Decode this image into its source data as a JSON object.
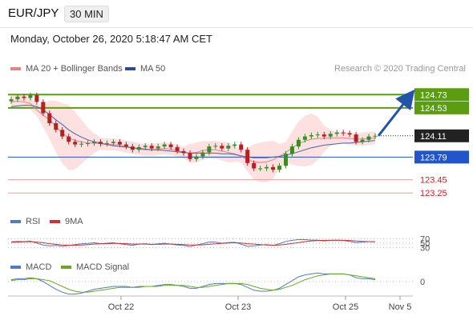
{
  "header": {
    "symbol": "EUR/JPY",
    "timeframe": "30 MIN",
    "datetime": "Monday, October 26, 2020 5:18:47 AM CET"
  },
  "legend": {
    "ma20_label": "MA 20 + Bollinger Bands",
    "ma50_label": "MA 50",
    "credit": "Research © 2020 Trading Central"
  },
  "rsi_legend": {
    "rsi_label": "RSI",
    "ma_label": "9MA"
  },
  "macd_legend": {
    "macd_label": "MACD",
    "signal_label": "MACD Signal"
  },
  "colors": {
    "resistance": "#5a9e0f",
    "support": "#2255cc",
    "weak_support": "#e8a0a0",
    "current": "#222222",
    "ma20": "#f08080",
    "band": "#fde0e0",
    "ma50": "#4466aa",
    "rsi": "#5577cc",
    "rsi_ma": "#cc3333",
    "macd": "#5577cc",
    "macd_signal": "#66aa22",
    "candle_up": "#3a8a2a",
    "candle_down": "#b52020",
    "arrow": "#2255aa"
  },
  "chart_data": [
    {
      "type": "candlestick",
      "title": "EUR/JPY",
      "ylim": [
        123.0,
        124.95
      ],
      "x_ticks": [
        "Oct 22",
        "Oct 23",
        "Oct 25",
        "Nov 5"
      ],
      "price_levels": [
        {
          "label": "124.73",
          "value": 124.73,
          "kind": "resistance"
        },
        {
          "label": "124.53",
          "value": 124.53,
          "kind": "resistance"
        },
        {
          "label": "124.11",
          "value": 124.11,
          "kind": "current"
        },
        {
          "label": "123.79",
          "value": 123.79,
          "kind": "support"
        },
        {
          "label": "123.45",
          "value": 123.45,
          "kind": "weak_support"
        },
        {
          "label": "123.25",
          "value": 123.25,
          "kind": "weak_support"
        }
      ],
      "close_series": [
        124.66,
        124.7,
        124.68,
        124.72,
        124.62,
        124.45,
        124.3,
        124.2,
        124.1,
        124.02,
        123.98,
        123.99,
        124.0,
        124.02,
        123.99,
        124.0,
        124.02,
        123.98,
        123.95,
        123.9,
        123.94,
        123.96,
        123.92,
        123.95,
        123.98,
        123.94,
        123.88,
        123.85,
        123.76,
        123.8,
        123.86,
        123.95,
        123.96,
        123.92,
        123.96,
        123.98,
        123.9,
        123.7,
        123.62,
        123.62,
        123.64,
        123.6,
        123.66,
        123.84,
        123.95,
        124.05,
        124.1,
        124.12,
        124.13,
        124.1,
        124.14,
        124.16,
        124.15,
        124.13,
        124.02,
        124.05,
        124.1,
        124.11
      ],
      "ma20_series": [
        124.62,
        124.63,
        124.62,
        124.6,
        124.5,
        124.42,
        124.35,
        124.25,
        124.15,
        124.08,
        124.04,
        124.02,
        124.0,
        124.0,
        123.99,
        123.98,
        123.98,
        123.97,
        123.95,
        123.93,
        123.91,
        123.9,
        123.9,
        123.91,
        123.92,
        123.91,
        123.89,
        123.86,
        123.85,
        123.86,
        123.89,
        123.9,
        123.9,
        123.88,
        123.86,
        123.84,
        123.8,
        123.75,
        123.72,
        123.71,
        123.72,
        123.75,
        123.8,
        123.86,
        123.93,
        123.99,
        124.03,
        124.06,
        124.07,
        124.07,
        124.08,
        124.08,
        124.08,
        124.07,
        124.06,
        124.06,
        124.07,
        124.08
      ],
      "ma50_series": [
        124.55,
        124.56,
        124.57,
        124.57,
        124.55,
        124.5,
        124.43,
        124.35,
        124.28,
        124.2,
        124.14,
        124.09,
        124.05,
        124.02,
        124.0,
        123.98,
        123.96,
        123.95,
        123.94,
        123.93,
        123.92,
        123.91,
        123.9,
        123.9,
        123.89,
        123.88,
        123.87,
        123.86,
        123.85,
        123.85,
        123.85,
        123.85,
        123.85,
        123.84,
        123.84,
        123.83,
        123.81,
        123.79,
        123.78,
        123.78,
        123.78,
        123.79,
        123.8,
        123.82,
        123.84,
        123.87,
        123.9,
        123.93,
        123.95,
        123.97,
        123.98,
        123.99,
        124.0,
        124.0,
        124.01,
        124.02,
        124.03,
        124.04
      ],
      "forecast": {
        "from": 124.11,
        "to": 124.73
      }
    },
    {
      "type": "line",
      "title": "RSI",
      "ylim": [
        0,
        100
      ],
      "y_ticks": [
        "70",
        "50",
        "30"
      ],
      "series": [
        {
          "name": "RSI",
          "values": [
            56,
            58,
            57,
            60,
            50,
            42,
            38,
            40,
            36,
            40,
            44,
            47,
            49,
            52,
            48,
            50,
            52,
            47,
            44,
            40,
            46,
            48,
            44,
            47,
            50,
            46,
            42,
            40,
            35,
            42,
            48,
            55,
            55,
            50,
            53,
            54,
            46,
            36,
            38,
            42,
            44,
            40,
            48,
            58,
            63,
            66,
            66,
            64,
            64,
            60,
            63,
            64,
            62,
            58,
            52,
            55,
            57,
            57
          ]
        },
        {
          "name": "9MA",
          "values": [
            54,
            55,
            56,
            57,
            55,
            52,
            48,
            45,
            42,
            41,
            41,
            42,
            44,
            46,
            47,
            48,
            49,
            49,
            48,
            46,
            46,
            46,
            45,
            45,
            46,
            46,
            45,
            44,
            42,
            42,
            43,
            45,
            47,
            49,
            51,
            52,
            51,
            48,
            46,
            44,
            42,
            41,
            42,
            45,
            49,
            53,
            57,
            60,
            62,
            63,
            63,
            63,
            63,
            62,
            60,
            58,
            57,
            56
          ]
        }
      ]
    },
    {
      "type": "line",
      "title": "MACD",
      "y_ticks": [
        "0"
      ],
      "series": [
        {
          "name": "MACD",
          "values": [
            0.02,
            0.03,
            0.03,
            0.04,
            0.03,
            0.0,
            -0.04,
            -0.08,
            -0.11,
            -0.13,
            -0.13,
            -0.12,
            -0.1,
            -0.08,
            -0.07,
            -0.06,
            -0.05,
            -0.05,
            -0.05,
            -0.06,
            -0.05,
            -0.05,
            -0.05,
            -0.04,
            -0.03,
            -0.03,
            -0.04,
            -0.05,
            -0.07,
            -0.07,
            -0.05,
            -0.03,
            -0.02,
            -0.02,
            -0.02,
            -0.02,
            -0.03,
            -0.06,
            -0.09,
            -0.1,
            -0.1,
            -0.09,
            -0.07,
            -0.03,
            0.01,
            0.05,
            0.07,
            0.08,
            0.09,
            0.08,
            0.08,
            0.08,
            0.08,
            0.07,
            0.04,
            0.03,
            0.03,
            0.02
          ]
        },
        {
          "name": "MACD Signal",
          "values": [
            0.01,
            0.02,
            0.02,
            0.03,
            0.03,
            0.02,
            0.01,
            -0.02,
            -0.05,
            -0.08,
            -0.1,
            -0.11,
            -0.11,
            -0.1,
            -0.09,
            -0.08,
            -0.07,
            -0.06,
            -0.06,
            -0.06,
            -0.06,
            -0.05,
            -0.05,
            -0.05,
            -0.04,
            -0.04,
            -0.04,
            -0.04,
            -0.05,
            -0.06,
            -0.06,
            -0.05,
            -0.04,
            -0.03,
            -0.02,
            -0.02,
            -0.02,
            -0.03,
            -0.05,
            -0.07,
            -0.08,
            -0.09,
            -0.08,
            -0.06,
            -0.04,
            -0.01,
            0.02,
            0.04,
            0.06,
            0.07,
            0.08,
            0.08,
            0.08,
            0.07,
            0.06,
            0.05,
            0.04,
            0.03
          ]
        }
      ]
    }
  ]
}
